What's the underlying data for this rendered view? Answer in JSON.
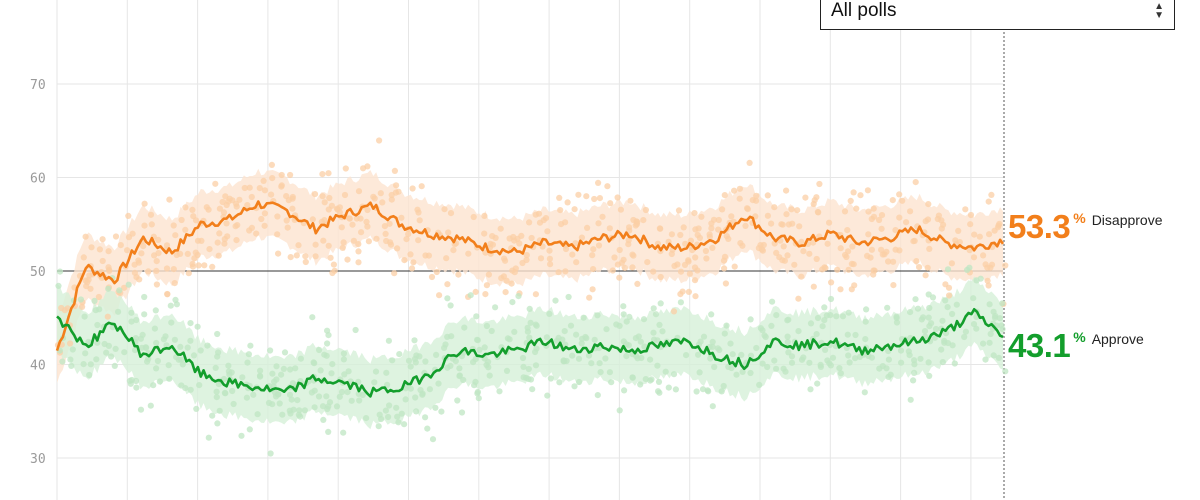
{
  "filter": {
    "selected": "All polls",
    "icon": "sort-arrows-icon"
  },
  "colors": {
    "disapprove": "#f27f1b",
    "disapprove_dot": "#fbcfa6",
    "disapprove_band": "#fde4cf",
    "approve": "#139e2c",
    "approve_dot": "#bfe5c3",
    "approve_band": "#d6f0d8",
    "grid": "#e6e6e6",
    "baseline": "#333333"
  },
  "readouts": {
    "disapprove": {
      "value": "53.3",
      "unit": "%",
      "label": "Disapprove"
    },
    "approve": {
      "value": "43.1",
      "unit": "%",
      "label": "Approve"
    }
  },
  "chart_data": {
    "type": "line",
    "ylim": [
      27,
      80
    ],
    "yticks": [
      "30",
      "40",
      "50",
      "60",
      "70"
    ],
    "reference_line": 50,
    "x_points": 34,
    "series": [
      {
        "name": "Disapprove",
        "values": [
          41.5,
          50.5,
          49.0,
          53.5,
          52.0,
          55.0,
          55.5,
          57.2,
          56.5,
          54.5,
          56.0,
          57.0,
          55.0,
          54.0,
          53.5,
          52.5,
          52.0,
          53.0,
          52.5,
          53.5,
          54.0,
          52.5,
          52.5,
          53.5,
          56.0,
          53.5,
          53.0,
          54.0,
          53.0,
          53.5,
          54.5,
          53.0,
          52.5,
          53.3
        ],
        "band_halfwidth": 3.5
      },
      {
        "name": "Approve",
        "values": [
          45.0,
          42.0,
          44.5,
          41.0,
          42.0,
          39.0,
          38.0,
          37.5,
          37.0,
          38.5,
          38.0,
          37.0,
          37.5,
          39.0,
          41.5,
          41.0,
          41.5,
          42.5,
          41.5,
          42.0,
          41.5,
          42.0,
          42.5,
          41.0,
          40.0,
          42.5,
          42.0,
          42.5,
          41.5,
          42.0,
          42.5,
          43.5,
          45.5,
          43.1
        ],
        "band_halfwidth": 3.5
      }
    ]
  }
}
